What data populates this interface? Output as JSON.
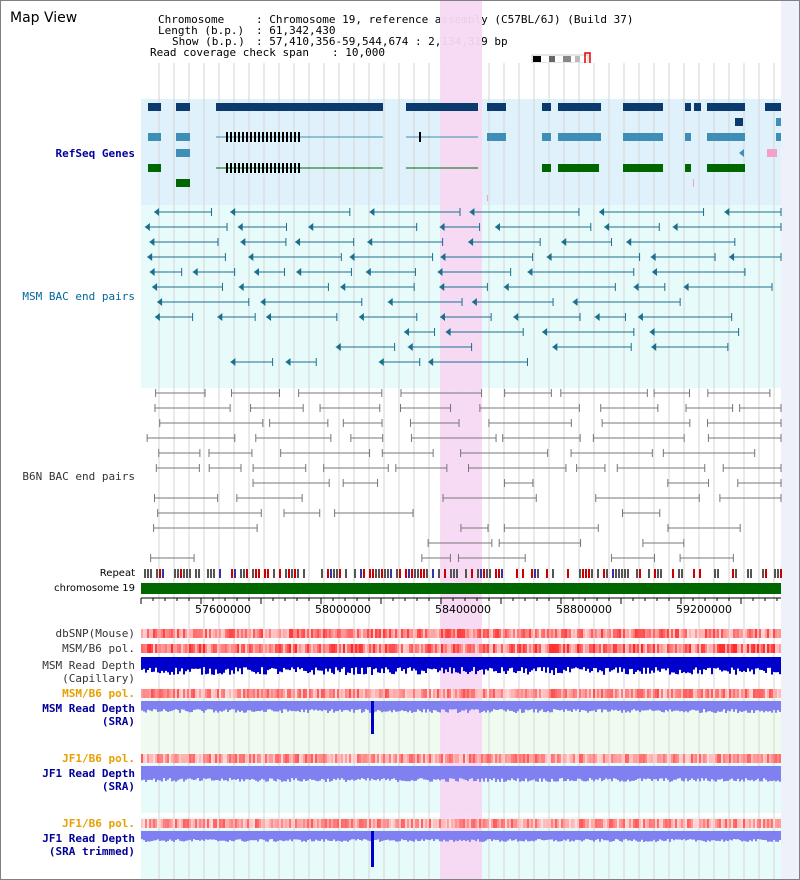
{
  "window": {
    "title": "Map View"
  },
  "header": {
    "chromosome_key": "Chromosome",
    "chromosome_value": ": Chromosome 19, reference assembly (C57BL/6J) (Build 37)",
    "length_key": "Length (b.p.)",
    "length_value": ": 61,342,430",
    "show_key": "Show (b.p.)",
    "show_value": ": 57,410,356-59,544,674 : 2,134,319 bp",
    "coverage_key": "Read coverage check span",
    "coverage_value": ": 10,000"
  },
  "tracks": {
    "refseq": "RefSeq Genes",
    "msm_bac": "MSM BAC end pairs",
    "b6n_bac": "B6N BAC end pairs",
    "repeat": "Repeat",
    "chromosome": "chromosome 19",
    "dbsnp": "dbSNP(Mouse)",
    "msm_b6_pol": "MSM/B6 pol.",
    "msm_read_depth_cap_1": "MSM Read Depth",
    "msm_read_depth_cap_2": "(Capillary)",
    "msm_b6_pol_sra": "MSM/B6 pol.",
    "msm_read_depth_sra_1": "MSM Read Depth",
    "msm_read_depth_sra_2": "(SRA)",
    "jf1_b6_pol_1": "JF1/B6 pol.",
    "jf1_read_depth_sra_1": "JF1 Read Depth",
    "jf1_read_depth_sra_2": "(SRA)",
    "jf1_b6_pol_2": "JF1/B6 pol.",
    "jf1_read_depth_trim_1": "JF1 Read Depth",
    "jf1_read_depth_trim_2": "(SRA trimmed)"
  },
  "ruler": {
    "ticks": [
      "57600000",
      "58000000",
      "58400000",
      "58800000",
      "59200000"
    ]
  },
  "colors": {
    "refseq_bg": "#dff1fb",
    "bac_bg": "#e8fbfb",
    "highlight": "#f7d8f3",
    "chromosome_bar": "#006600",
    "refseq_dark": "#0b3a6e",
    "refseq_mid": "#3f8eb5",
    "refseq_green": "#006600",
    "msm_bac": "#1b6e8c",
    "b6n_bac": "#777777",
    "depth_blue": "#0000cc",
    "depth_light": "#8080f0"
  }
}
